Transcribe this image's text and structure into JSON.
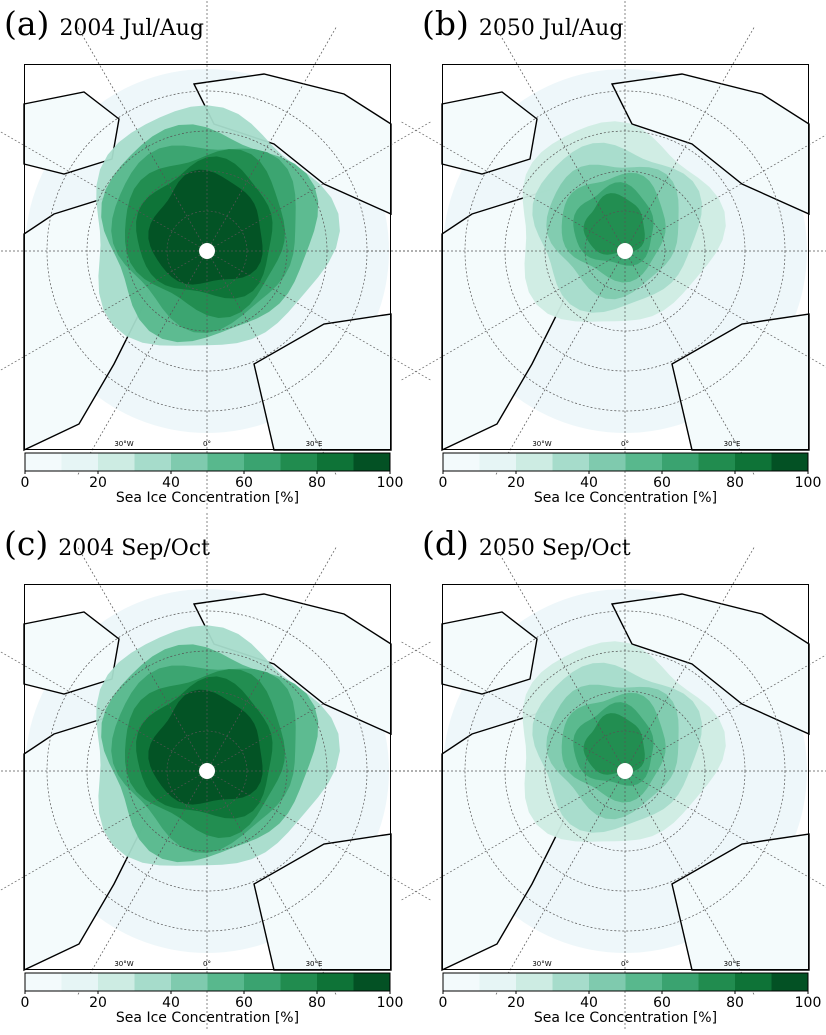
{
  "colorbar": {
    "label": "Sea Ice Concentration [%]",
    "ticks": [
      "0",
      "20",
      "40",
      "60",
      "80",
      "100"
    ],
    "bin_colors": [
      "#f3fafc",
      "#e6f5f5",
      "#cdece3",
      "#a6dccb",
      "#7fcaae",
      "#58b88d",
      "#3aa370",
      "#218c4f",
      "#0e7337",
      "#035124"
    ],
    "tick_values": [
      0,
      20,
      40,
      60,
      80,
      100
    ]
  },
  "lon_labels": [
    "30°W",
    "0°",
    "30°E"
  ],
  "colors": {
    "ocean": "#eef7fa",
    "coast": "#000000",
    "pole": "#ffffff",
    "grid": "#555555"
  },
  "panels": [
    {
      "letter": "(a)",
      "title": "2004 Jul/Aug",
      "extent": "high"
    },
    {
      "letter": "(b)",
      "title": "2050 Jul/Aug",
      "extent": "low"
    },
    {
      "letter": "(c)",
      "title": "2004 Sep/Oct",
      "extent": "high"
    },
    {
      "letter": "(d)",
      "title": "2050 Sep/Oct",
      "extent": "low"
    }
  ]
}
